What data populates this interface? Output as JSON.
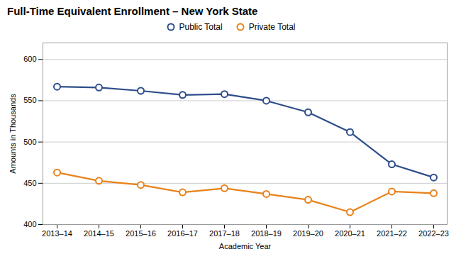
{
  "chart_data": {
    "type": "line",
    "title": "Full-Time Equivalent Enrollment – New York State",
    "xlabel": "Academic Year",
    "ylabel": "Amounts in Thousands",
    "categories": [
      "2013–14",
      "2014–15",
      "2015–16",
      "2016–17",
      "2017–18",
      "2018–19",
      "2019–20",
      "2020–21",
      "2021–22",
      "2022–23"
    ],
    "series": [
      {
        "name": "Public Total",
        "color": "#2E4D8A",
        "values": [
          567,
          566,
          562,
          557,
          558,
          550,
          536,
          512,
          473,
          457
        ]
      },
      {
        "name": "Private Total",
        "color": "#E8821A",
        "values": [
          463,
          453,
          448,
          439,
          444,
          437,
          430,
          415,
          440,
          438
        ]
      }
    ],
    "ylim": [
      400,
      620
    ],
    "yticks": [
      400,
      450,
      500,
      550,
      600
    ],
    "grid": true,
    "legend": "top",
    "marker": "circle"
  }
}
